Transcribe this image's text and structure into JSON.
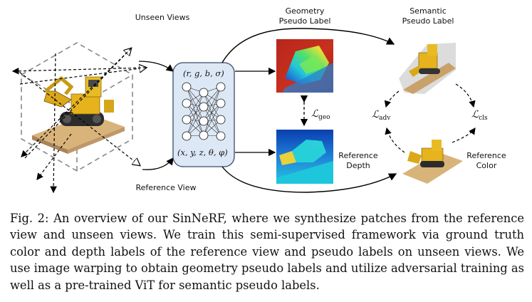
{
  "figure": {
    "labels": {
      "unseen_views": "Unseen Views",
      "reference_view": "Reference View",
      "geometry_line1": "Geometry",
      "geometry_line2": "Pseudo Label",
      "semantic_line1": "Semantic",
      "semantic_line2": "Pseudo Label",
      "reference_depth_line1": "Reference",
      "reference_depth_line2": "Depth",
      "reference_color_line1": "Reference",
      "reference_color_line2": "Color"
    },
    "network": {
      "output": "(r, g, b, σ)",
      "input": "(x, y, z, θ, φ)"
    },
    "losses": {
      "geo_symbol": "ℒ",
      "geo_sub": "geo",
      "adv_symbol": "ℒ",
      "adv_sub": "adv",
      "cls_symbol": "ℒ",
      "cls_sub": "cls"
    },
    "colors": {
      "network_fill": "#dde8f6",
      "network_stroke": "#3b4a66",
      "depth_red": "#c8281e",
      "depth_blue": "#1a55c8",
      "bulldozer_yellow": "#e8b81a"
    }
  },
  "caption": {
    "prefix": "Fig. 2:",
    "text": " An overview of our SinNeRF, where we synthesize patches from the reference view and unseen views. We train this semi-supervised framework via ground truth color and depth labels of the reference view and pseudo labels on unseen views. We use image warping to obtain geometry pseudo labels and utilize adversarial training as well as a pre-trained ViT for semantic pseudo labels."
  }
}
